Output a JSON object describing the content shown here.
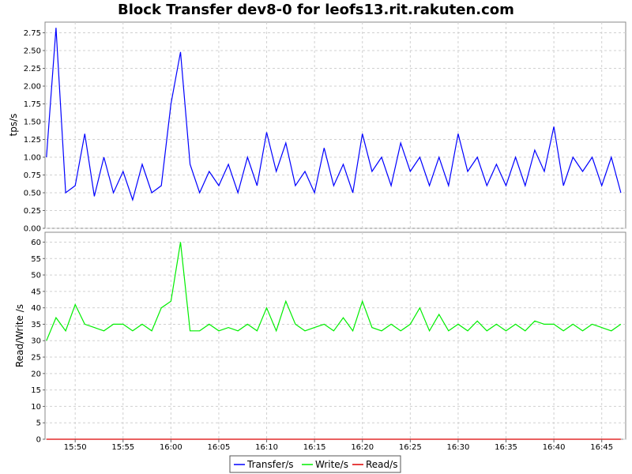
{
  "chart_data": {
    "type": "line",
    "title": "Block Transfer dev8-0 for leofs13.rit.rakuten.com",
    "x_ticks": [
      "15:50",
      "15:55",
      "16:00",
      "16:05",
      "16:10",
      "16:15",
      "16:20",
      "16:25",
      "16:30",
      "16:35",
      "16:40",
      "16:45"
    ],
    "x_range": [
      "15:47",
      "16:47"
    ],
    "grid": true,
    "legend_placement": "bottom-center",
    "legend": [
      {
        "name": "Transfer/s",
        "color": "#0000ff"
      },
      {
        "name": "Write/s",
        "color": "#00ee00"
      },
      {
        "name": "Read/s",
        "color": "#dd0000"
      }
    ],
    "panels": [
      {
        "ylabel": "tps/s",
        "ylim": [
          0,
          2.9
        ],
        "y_ticks": [
          "0.00",
          "0.25",
          "0.50",
          "0.75",
          "1.00",
          "1.25",
          "1.50",
          "1.75",
          "2.00",
          "2.25",
          "2.50",
          "2.75"
        ],
        "series": [
          {
            "name": "Transfer/s",
            "color": "#0000ff",
            "x": [
              "15:47",
              "15:48",
              "15:49",
              "15:50",
              "15:51",
              "15:52",
              "15:53",
              "15:54",
              "15:55",
              "15:56",
              "15:57",
              "15:58",
              "15:59",
              "16:00",
              "16:01",
              "16:02",
              "16:03",
              "16:04",
              "16:05",
              "16:06",
              "16:07",
              "16:08",
              "16:09",
              "16:10",
              "16:11",
              "16:12",
              "16:13",
              "16:14",
              "16:15",
              "16:16",
              "16:17",
              "16:18",
              "16:19",
              "16:20",
              "16:21",
              "16:22",
              "16:23",
              "16:24",
              "16:25",
              "16:26",
              "16:27",
              "16:28",
              "16:29",
              "16:30",
              "16:31",
              "16:32",
              "16:33",
              "16:34",
              "16:35",
              "16:36",
              "16:37",
              "16:38",
              "16:39",
              "16:40",
              "16:41",
              "16:42",
              "16:43",
              "16:44",
              "16:45",
              "16:46",
              "16:47"
            ],
            "values": [
              1.0,
              2.82,
              0.5,
              0.6,
              1.33,
              0.45,
              1.0,
              0.5,
              0.8,
              0.4,
              0.9,
              0.5,
              0.6,
              1.75,
              2.48,
              0.9,
              0.5,
              0.8,
              0.6,
              0.9,
              0.5,
              1.0,
              0.6,
              1.35,
              0.8,
              1.2,
              0.6,
              0.8,
              0.5,
              1.13,
              0.6,
              0.9,
              0.5,
              1.33,
              0.8,
              1.0,
              0.6,
              1.2,
              0.8,
              1.0,
              0.6,
              1.0,
              0.6,
              1.33,
              0.8,
              1.0,
              0.6,
              0.9,
              0.6,
              1.0,
              0.6,
              1.1,
              0.8,
              1.43,
              0.6,
              1.0,
              0.8,
              1.0,
              0.6,
              1.0,
              0.5
            ]
          }
        ]
      },
      {
        "ylabel": "Read/Write /s",
        "ylim": [
          0,
          63
        ],
        "y_ticks": [
          "0",
          "5",
          "10",
          "15",
          "20",
          "25",
          "30",
          "35",
          "40",
          "45",
          "50",
          "55",
          "60"
        ],
        "series": [
          {
            "name": "Write/s",
            "color": "#00ee00",
            "x": [
              "15:47",
              "15:48",
              "15:49",
              "15:50",
              "15:51",
              "15:52",
              "15:53",
              "15:54",
              "15:55",
              "15:56",
              "15:57",
              "15:58",
              "15:59",
              "16:00",
              "16:01",
              "16:02",
              "16:03",
              "16:04",
              "16:05",
              "16:06",
              "16:07",
              "16:08",
              "16:09",
              "16:10",
              "16:11",
              "16:12",
              "16:13",
              "16:14",
              "16:15",
              "16:16",
              "16:17",
              "16:18",
              "16:19",
              "16:20",
              "16:21",
              "16:22",
              "16:23",
              "16:24",
              "16:25",
              "16:26",
              "16:27",
              "16:28",
              "16:29",
              "16:30",
              "16:31",
              "16:32",
              "16:33",
              "16:34",
              "16:35",
              "16:36",
              "16:37",
              "16:38",
              "16:39",
              "16:40",
              "16:41",
              "16:42",
              "16:43",
              "16:44",
              "16:45",
              "16:46",
              "16:47"
            ],
            "values": [
              30,
              37,
              33,
              41,
              35,
              34,
              33,
              35,
              35,
              33,
              35,
              33,
              40,
              42,
              60,
              33,
              33,
              35,
              33,
              34,
              33,
              35,
              33,
              40,
              33,
              42,
              35,
              33,
              34,
              35,
              33,
              37,
              33,
              42,
              34,
              33,
              35,
              33,
              35,
              40,
              33,
              38,
              33,
              35,
              33,
              36,
              33,
              35,
              33,
              35,
              33,
              36,
              35,
              35,
              33,
              35,
              33,
              35,
              34,
              33,
              35
            ]
          },
          {
            "name": "Read/s",
            "color": "#dd0000",
            "x": [
              "15:47",
              "16:47"
            ],
            "values": [
              0,
              0
            ]
          }
        ]
      }
    ]
  }
}
